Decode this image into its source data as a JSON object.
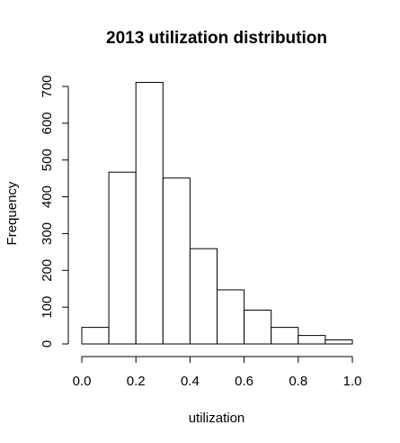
{
  "chart_data": {
    "type": "bar",
    "title": "2013 utilization distribution",
    "xlabel": "utilization",
    "ylabel": "Frequency",
    "bins": [
      {
        "start": 0.0,
        "end": 0.1,
        "value": 45
      },
      {
        "start": 0.1,
        "end": 0.2,
        "value": 467
      },
      {
        "start": 0.2,
        "end": 0.3,
        "value": 711
      },
      {
        "start": 0.3,
        "end": 0.4,
        "value": 451
      },
      {
        "start": 0.4,
        "end": 0.5,
        "value": 259
      },
      {
        "start": 0.5,
        "end": 0.6,
        "value": 147
      },
      {
        "start": 0.6,
        "end": 0.7,
        "value": 92
      },
      {
        "start": 0.7,
        "end": 0.8,
        "value": 45
      },
      {
        "start": 0.8,
        "end": 0.9,
        "value": 23
      },
      {
        "start": 0.9,
        "end": 1.0,
        "value": 11
      }
    ],
    "xlim": [
      0,
      1
    ],
    "ylim": [
      0,
      700
    ],
    "xticks": [
      0.0,
      0.2,
      0.4,
      0.6,
      0.8,
      1.0
    ],
    "xtick_labels": [
      "0.0",
      "0.2",
      "0.4",
      "0.6",
      "0.8",
      "1.0"
    ],
    "yticks": [
      0,
      100,
      200,
      300,
      400,
      500,
      600,
      700
    ],
    "ytick_labels": [
      "0",
      "100",
      "200",
      "300",
      "400",
      "500",
      "600",
      "700"
    ],
    "grid": false,
    "legend": "none",
    "colors": {
      "bar_fill": "#ffffff",
      "bar_stroke": "#000000"
    }
  }
}
